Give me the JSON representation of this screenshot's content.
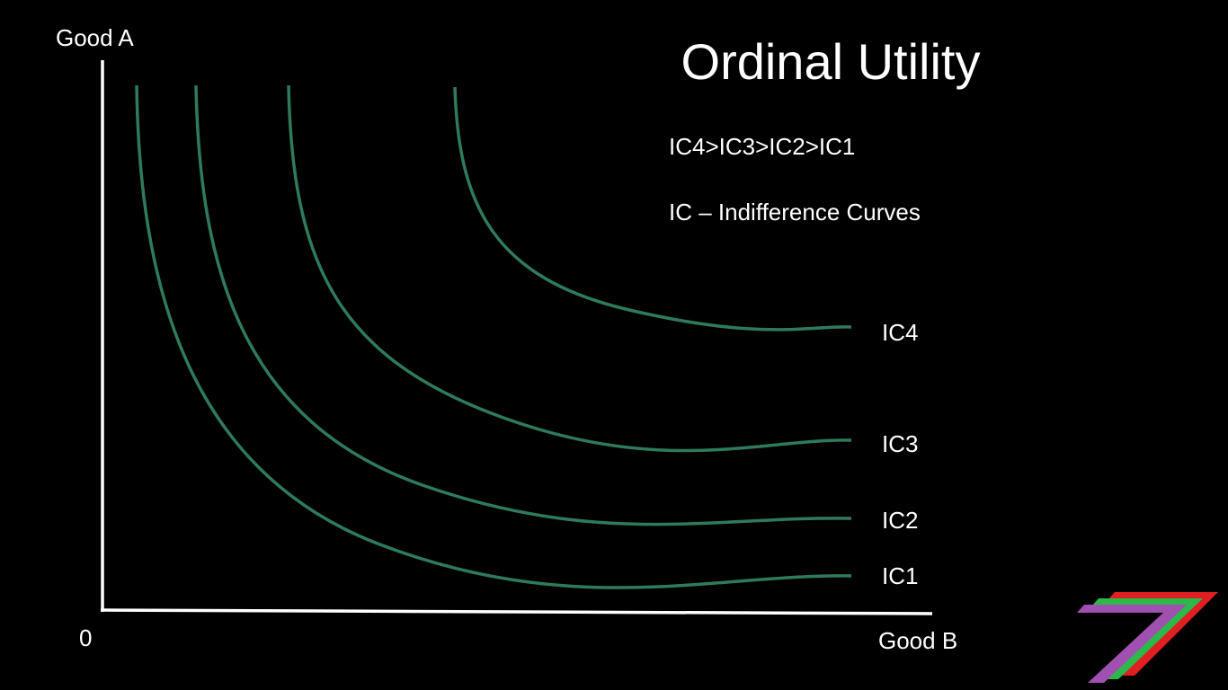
{
  "title": "Ordinal Utility",
  "axes": {
    "y_label": "Good A",
    "x_label": "Good B",
    "origin": "0"
  },
  "notes": [
    "IC4>IC3>IC2>IC1",
    "IC – Indifference Curves"
  ],
  "curves": [
    {
      "label": "IC4"
    },
    {
      "label": "IC3"
    },
    {
      "label": "IC2"
    },
    {
      "label": "IC1"
    }
  ]
}
